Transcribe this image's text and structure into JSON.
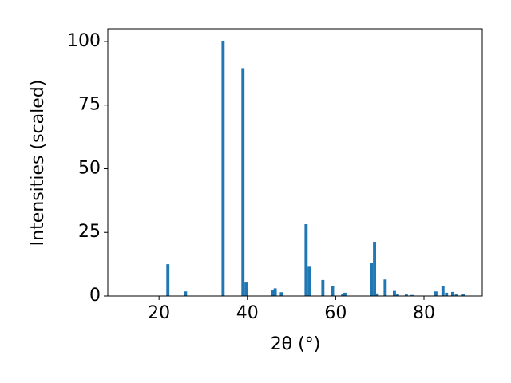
{
  "chart_data": {
    "type": "bar",
    "x_label": "2θ (°)",
    "y_label": "Intensities (scaled)",
    "x": [
      22.0,
      26.0,
      34.5,
      39.0,
      39.7,
      45.7,
      46.3,
      47.7,
      53.3,
      54.0,
      57.1,
      59.3,
      61.6,
      62.1,
      68.1,
      68.8,
      69.4,
      71.2,
      73.3,
      74.0,
      76.0,
      77.3,
      82.7,
      84.3,
      85.1,
      86.5,
      87.3,
      88.9
    ],
    "values": [
      12.5,
      1.8,
      100,
      89.5,
      5.3,
      2.3,
      3.0,
      1.5,
      28.2,
      11.8,
      6.3,
      3.9,
      0.8,
      1.3,
      13.0,
      21.3,
      1.0,
      6.5,
      2.0,
      0.7,
      0.6,
      0.4,
      1.8,
      4.0,
      1.3,
      1.6,
      0.6,
      0.7
    ],
    "color": "#1f77b4",
    "xlim": [
      8.4,
      93.2
    ],
    "ylim": [
      0,
      105
    ],
    "xticks": [
      20,
      40,
      60,
      80
    ],
    "yticks": [
      0,
      25,
      50,
      75,
      100
    ]
  }
}
